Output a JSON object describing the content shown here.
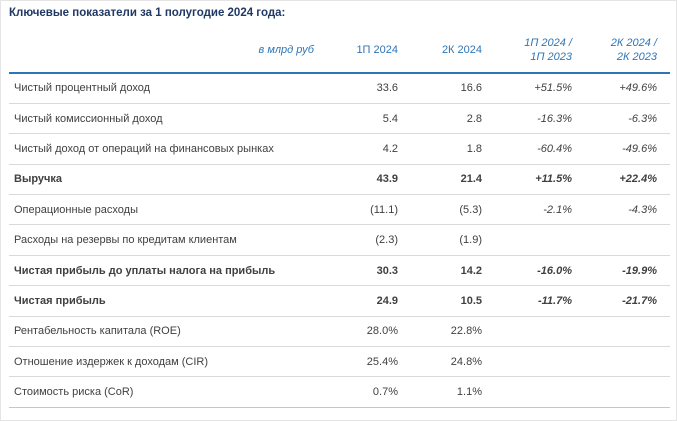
{
  "title": "Ключевые показатели за 1 полугодие 2024 года:",
  "colors": {
    "title_navy": "#1f3864",
    "header_blue": "#2e75b6",
    "body_text": "#404040",
    "row_divider": "#d9d9d9"
  },
  "table": {
    "headers": {
      "unit": "в млрд руб",
      "h1": "1П 2024",
      "q2": "2К 2024",
      "d1": {
        "line1": "1П 2024 /",
        "line2": "1П 2023"
      },
      "d2": {
        "line1": "2К 2024 /",
        "line2": "2К 2023"
      }
    },
    "rows": [
      {
        "label": "Чистый процентный доход",
        "h1": "33.6",
        "q2": "16.6",
        "d1": "+51.5%",
        "d2": "+49.6%"
      },
      {
        "label": "Чистый комиссионный доход",
        "h1": "5.4",
        "q2": "2.8",
        "d1": "-16.3%",
        "d2": "-6.3%"
      },
      {
        "label": "Чистый доход от операций на финансовых рынках",
        "h1": "4.2",
        "q2": "1.8",
        "d1": "-60.4%",
        "d2": "-49.6%"
      },
      {
        "label": "Выручка",
        "h1": "43.9",
        "q2": "21.4",
        "d1": "+11.5%",
        "d2": "+22.4%"
      },
      {
        "label": "Операционные расходы",
        "h1": "(11.1)",
        "q2": "(5.3)",
        "d1": "-2.1%",
        "d2": "-4.3%"
      },
      {
        "label": "Расходы на резервы по кредитам клиентам",
        "h1": "(2.3)",
        "q2": "(1.9)",
        "d1": "",
        "d2": ""
      },
      {
        "label": "Чистая прибыль до уплаты налога на прибыль",
        "h1": "30.3",
        "q2": "14.2",
        "d1": "-16.0%",
        "d2": "-19.9%"
      },
      {
        "label": "Чистая прибыль",
        "h1": "24.9",
        "q2": "10.5",
        "d1": "-11.7%",
        "d2": "-21.7%"
      },
      {
        "label": "Рентабельность капитала (ROE)",
        "h1": "28.0%",
        "q2": "22.8%",
        "d1": "",
        "d2": ""
      },
      {
        "label": "Отношение издержек к доходам (CIR)",
        "h1": "25.4%",
        "q2": "24.8%",
        "d1": "",
        "d2": ""
      },
      {
        "label": "Стоимость риска (CoR)",
        "h1": "0.7%",
        "q2": "1.1%",
        "d1": "",
        "d2": ""
      }
    ]
  }
}
